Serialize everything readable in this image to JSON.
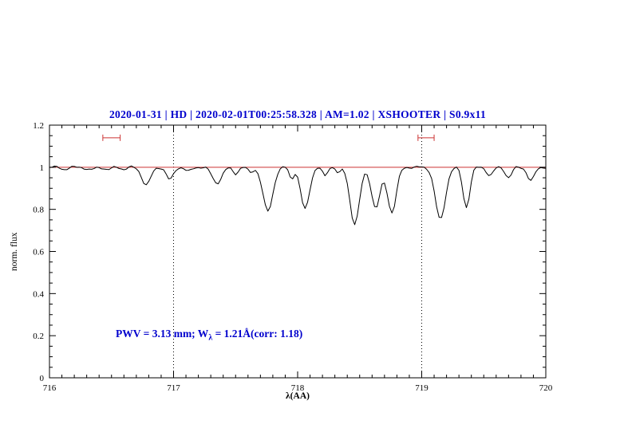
{
  "title": "2020-01-31 | HD | 2020-02-01T00:25:58.328 | AM=1.02 | XSHOOTER | S0.9x11",
  "colors": {
    "title_blue": "#0000cd",
    "annotation_blue": "#0000cd",
    "continuum_red": "#cc3333",
    "marker_red": "#cc3333",
    "spectrum_black": "#000000"
  },
  "annotation": {
    "prefix": "PWV = 3.13 mm; W",
    "sub": "λ",
    "suffix": " = 1.21Å(corr: 1.18)"
  },
  "chart_data": {
    "type": "line",
    "title": "2020-01-31 | HD | 2020-02-01T00:25:58.328 | AM=1.02 | XSHOOTER | S0.9x11",
    "xlabel": "λ(AA)",
    "ylabel": "norm. flux",
    "xlim": [
      716,
      720
    ],
    "ylim": [
      0,
      1.2
    ],
    "grid": false,
    "x_ticks": {
      "major": [
        716,
        717,
        718,
        719,
        720
      ],
      "labels": [
        "716",
        "717",
        "718",
        "719",
        "720"
      ],
      "minor_step": 0.1
    },
    "y_ticks": {
      "major": [
        0,
        0.2,
        0.4,
        0.6,
        0.8,
        1,
        1.2
      ],
      "labels": [
        "0",
        "0.2",
        "0.4",
        "0.6",
        "0.8",
        "1",
        "1.2"
      ],
      "minor_step": 0.05
    },
    "continuum_level": 1.0,
    "reference_lines_x": [
      717,
      719
    ],
    "marker_intervals": [
      {
        "x1": 716.43,
        "x2": 716.57,
        "y": 1.14
      },
      {
        "x1": 718.97,
        "x2": 719.1,
        "y": 1.14
      }
    ],
    "pwv_mm": 3.13,
    "equivalent_width_A": 1.21,
    "equivalent_width_corr": 1.18,
    "sample_step": 0.02,
    "absorption_lines": [
      {
        "center": 716.12,
        "depth": 0.01,
        "sigma": 0.025
      },
      {
        "center": 716.33,
        "depth": 0.013,
        "sigma": 0.03
      },
      {
        "center": 716.47,
        "depth": 0.012,
        "sigma": 0.025
      },
      {
        "center": 716.6,
        "depth": 0.01,
        "sigma": 0.02
      },
      {
        "center": 716.78,
        "depth": 0.085,
        "sigma": 0.035
      },
      {
        "center": 716.97,
        "depth": 0.06,
        "sigma": 0.028
      },
      {
        "center": 717.12,
        "depth": 0.02,
        "sigma": 0.025
      },
      {
        "center": 717.35,
        "depth": 0.075,
        "sigma": 0.038
      },
      {
        "center": 717.5,
        "depth": 0.03,
        "sigma": 0.022
      },
      {
        "center": 717.62,
        "depth": 0.025,
        "sigma": 0.02
      },
      {
        "center": 717.76,
        "depth": 0.21,
        "sigma": 0.04
      },
      {
        "center": 717.95,
        "depth": 0.055,
        "sigma": 0.018
      },
      {
        "center": 718.06,
        "depth": 0.2,
        "sigma": 0.035
      },
      {
        "center": 718.22,
        "depth": 0.045,
        "sigma": 0.018
      },
      {
        "center": 718.33,
        "depth": 0.03,
        "sigma": 0.015
      },
      {
        "center": 718.46,
        "depth": 0.27,
        "sigma": 0.038
      },
      {
        "center": 718.63,
        "depth": 0.195,
        "sigma": 0.035
      },
      {
        "center": 718.76,
        "depth": 0.215,
        "sigma": 0.035
      },
      {
        "center": 719.15,
        "depth": 0.25,
        "sigma": 0.04
      },
      {
        "center": 719.36,
        "depth": 0.19,
        "sigma": 0.028
      },
      {
        "center": 719.55,
        "depth": 0.04,
        "sigma": 0.025
      },
      {
        "center": 719.7,
        "depth": 0.05,
        "sigma": 0.025
      },
      {
        "center": 719.88,
        "depth": 0.065,
        "sigma": 0.028
      }
    ]
  }
}
